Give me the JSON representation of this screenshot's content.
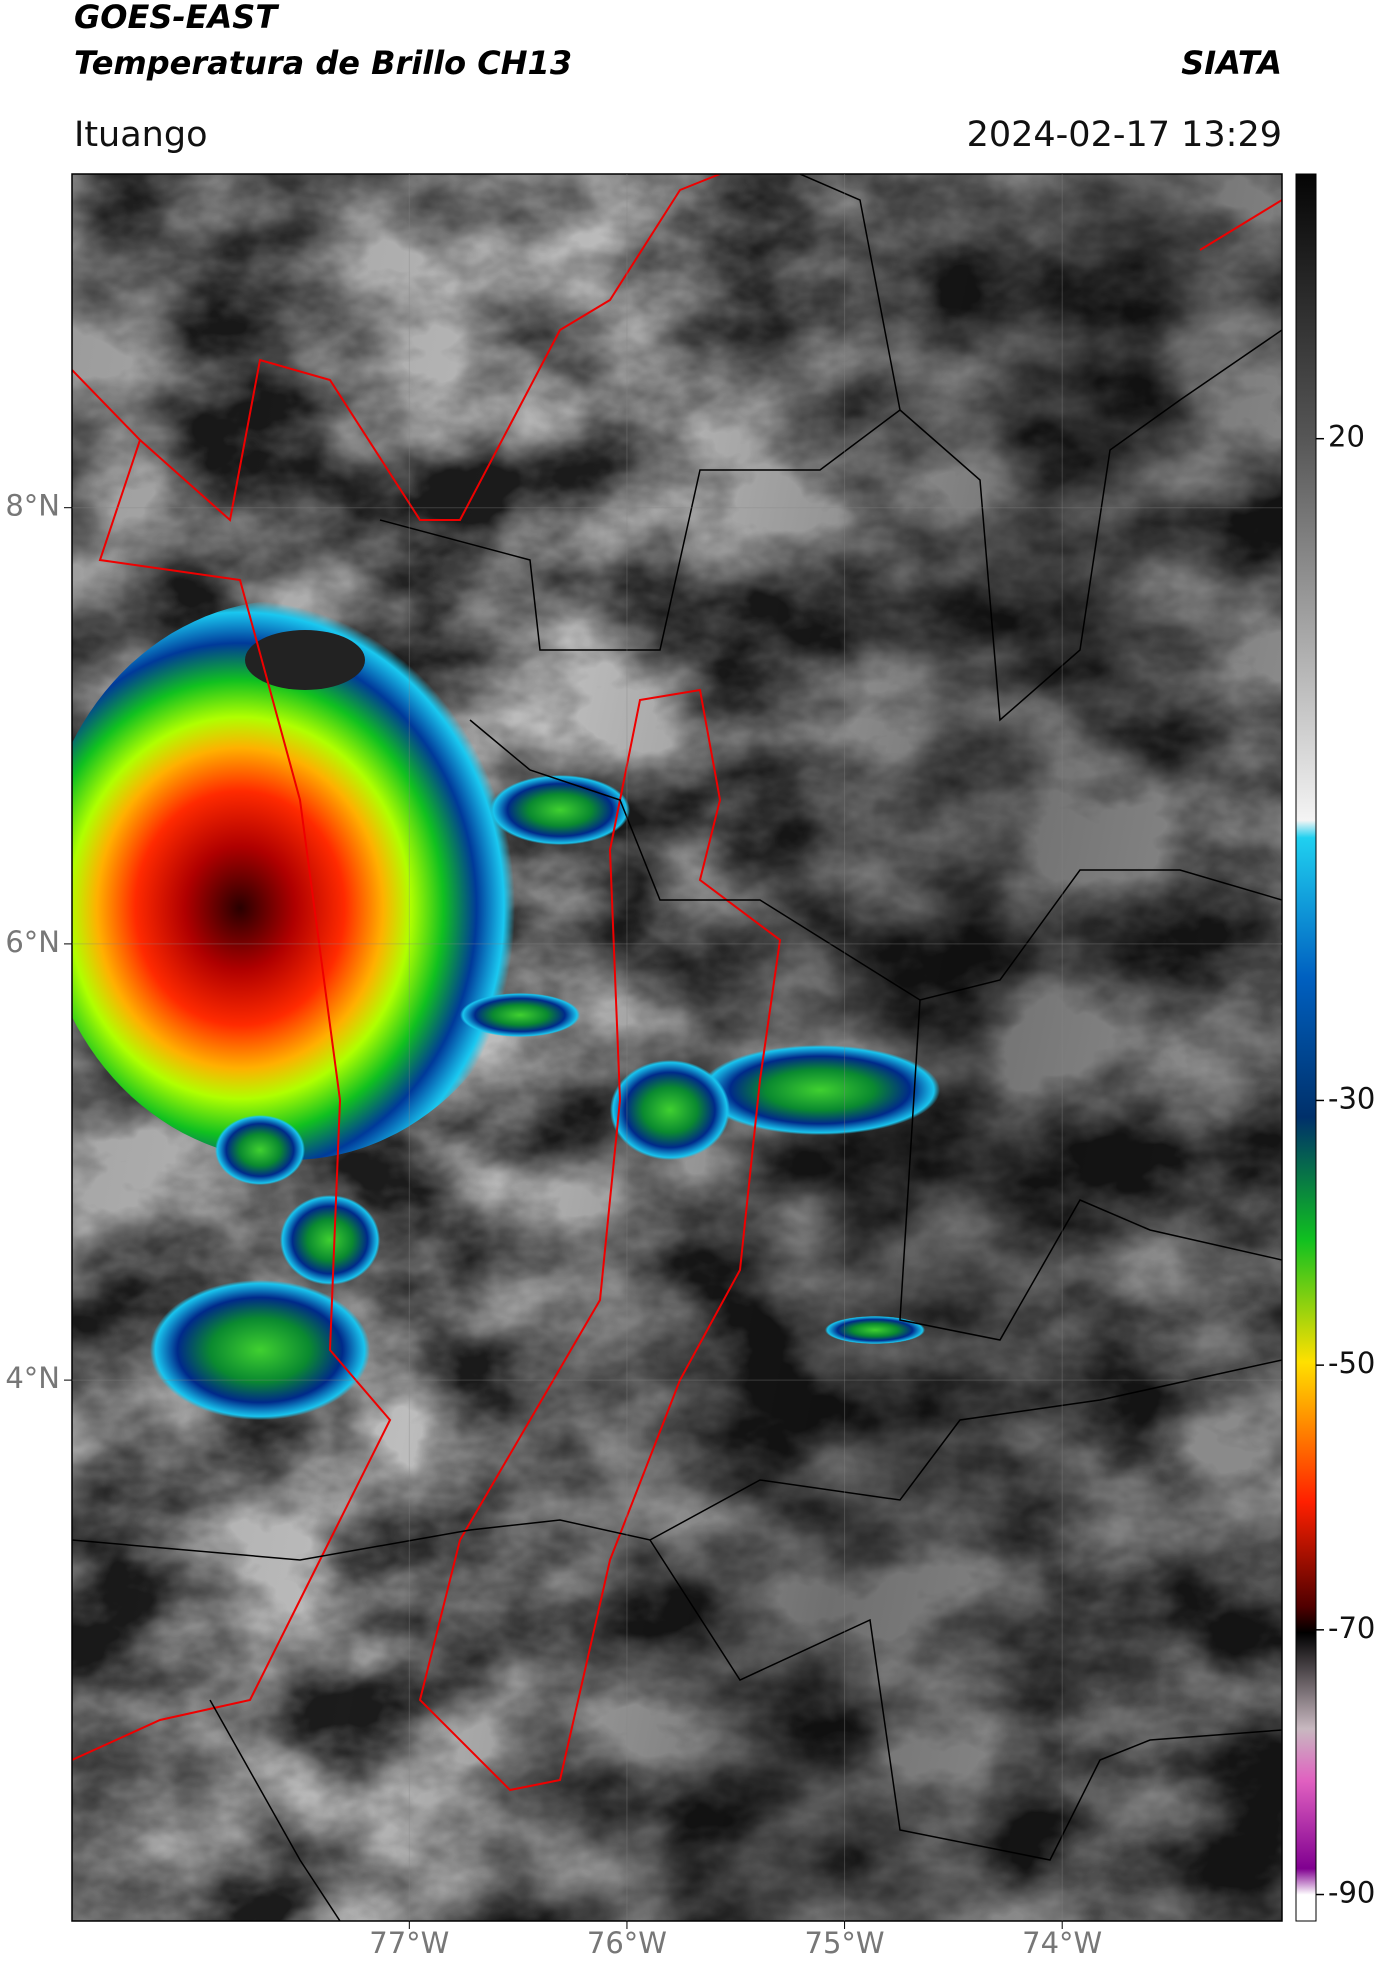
{
  "header": {
    "agency": "GOES-EAST",
    "title": "Temperatura de Brillo CH13",
    "source": "SIATA",
    "location": "Ituango",
    "datetime": "2024-02-17 13:29"
  },
  "map": {
    "xlim": [
      -78.55,
      -72.99
    ],
    "ylim": [
      1.52,
      9.53
    ],
    "xticks": [
      {
        "value": -77,
        "label": "77°W"
      },
      {
        "value": -76,
        "label": "76°W"
      },
      {
        "value": -75,
        "label": "75°W"
      },
      {
        "value": -74,
        "label": "74°W"
      }
    ],
    "yticks": [
      {
        "value": 8,
        "label": "8°N"
      },
      {
        "value": 6,
        "label": "6°N"
      },
      {
        "value": 4,
        "label": "4°N"
      }
    ],
    "grid": true
  },
  "colorbar": {
    "lim": [
      -92,
      40
    ],
    "ticks": [
      20,
      -30,
      -50,
      -70,
      -90
    ]
  }
}
